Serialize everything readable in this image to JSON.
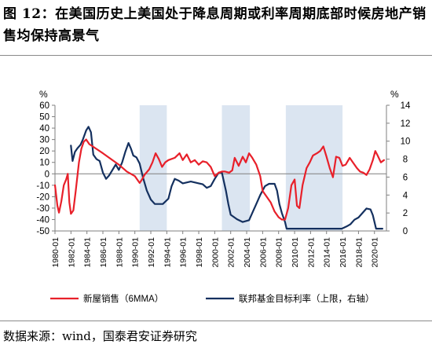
{
  "header": {
    "title": "图 12：在美国历史上美国处于降息周期或利率周期底部时候房地产销售均保持高景气"
  },
  "footer": {
    "source": "数据来源：wind，国泰君安证券研究"
  },
  "colors": {
    "sales": "#e8202a",
    "rate": "#14305f",
    "shade": "#dbe5f1",
    "axis": "#7f7f7f"
  },
  "chart_data": {
    "type": "line",
    "left_axis": {
      "unit": "%",
      "ylim": [
        -50,
        60
      ],
      "ticks": [
        60,
        50,
        40,
        30,
        20,
        10,
        0,
        -10,
        -20,
        -30,
        -40,
        -50
      ]
    },
    "right_axis": {
      "unit": "%",
      "ylim": [
        0,
        14
      ],
      "ticks": [
        14,
        12,
        10,
        8,
        6,
        4,
        2,
        0
      ]
    },
    "x_range": [
      1980.0,
      2021.5
    ],
    "x_tick_labels": [
      "1980-01",
      "1982-01",
      "1984-01",
      "1986-01",
      "1988-01",
      "1990-01",
      "1992-01",
      "1994-01",
      "1996-01",
      "1998-01",
      "2000-01",
      "2002-01",
      "2004-01",
      "2006-01",
      "2008-01",
      "2010-01",
      "2012-01",
      "2014-01",
      "2016-01",
      "2018-01",
      "2020-01"
    ],
    "shaded_periods": [
      [
        1990.6,
        1994.0
      ],
      [
        2000.9,
        2004.4
      ],
      [
        2008.9,
        2016.0
      ]
    ],
    "series": [
      {
        "name": "新屋销售（6MMA）",
        "axis": "left",
        "points": [
          [
            1980.0,
            -10
          ],
          [
            1980.3,
            -28
          ],
          [
            1980.5,
            -34
          ],
          [
            1980.8,
            -24
          ],
          [
            1981.1,
            -10
          ],
          [
            1981.4,
            -5
          ],
          [
            1981.6,
            0
          ],
          [
            1981.8,
            -25
          ],
          [
            1982.0,
            -35
          ],
          [
            1982.3,
            -32
          ],
          [
            1982.6,
            -15
          ],
          [
            1983.0,
            10
          ],
          [
            1983.3,
            22
          ],
          [
            1983.6,
            28
          ],
          [
            1983.9,
            30
          ],
          [
            1984.3,
            26
          ],
          [
            1986.0,
            18
          ],
          [
            1988.0,
            8
          ],
          [
            1989.0,
            2
          ],
          [
            1990.0,
            -2
          ],
          [
            1990.6,
            -8
          ],
          [
            1990.9,
            -5
          ],
          [
            1991.2,
            -1
          ],
          [
            1991.8,
            4
          ],
          [
            1992.2,
            10
          ],
          [
            1992.6,
            18
          ],
          [
            1993.0,
            13
          ],
          [
            1993.4,
            6
          ],
          [
            1993.8,
            10
          ],
          [
            1994.2,
            12
          ],
          [
            1995.0,
            14
          ],
          [
            1995.6,
            18
          ],
          [
            1996.0,
            12
          ],
          [
            1996.5,
            17
          ],
          [
            1997.0,
            10
          ],
          [
            1997.5,
            12
          ],
          [
            1998.0,
            8
          ],
          [
            1998.5,
            11
          ],
          [
            1999.0,
            10
          ],
          [
            1999.5,
            6
          ],
          [
            2000.0,
            -2
          ],
          [
            2000.5,
            1
          ],
          [
            2000.9,
            2
          ],
          [
            2001.3,
            2
          ],
          [
            2001.8,
            1
          ],
          [
            2002.2,
            3
          ],
          [
            2002.5,
            14
          ],
          [
            2003.0,
            7
          ],
          [
            2003.5,
            15
          ],
          [
            2003.9,
            10
          ],
          [
            2004.3,
            18
          ],
          [
            2004.7,
            14
          ],
          [
            2005.2,
            8
          ],
          [
            2005.7,
            -2
          ],
          [
            2006.0,
            -15
          ],
          [
            2006.5,
            -20
          ],
          [
            2007.0,
            -25
          ],
          [
            2007.5,
            -33
          ],
          [
            2008.0,
            -38
          ],
          [
            2008.4,
            -40
          ],
          [
            2008.8,
            -40
          ],
          [
            2009.2,
            -30
          ],
          [
            2009.6,
            -10
          ],
          [
            2010.0,
            -5
          ],
          [
            2010.3,
            -28
          ],
          [
            2010.6,
            -30
          ],
          [
            2011.0,
            -10
          ],
          [
            2011.5,
            5
          ],
          [
            2011.9,
            10
          ],
          [
            2012.3,
            16
          ],
          [
            2012.8,
            18
          ],
          [
            2013.2,
            20
          ],
          [
            2013.6,
            24
          ],
          [
            2014.0,
            15
          ],
          [
            2014.4,
            5
          ],
          [
            2014.8,
            -3
          ],
          [
            2015.2,
            15
          ],
          [
            2015.6,
            14
          ],
          [
            2016.0,
            7
          ],
          [
            2016.4,
            8
          ],
          [
            2016.9,
            14
          ],
          [
            2017.3,
            10
          ],
          [
            2017.8,
            5
          ],
          [
            2018.2,
            2
          ],
          [
            2018.6,
            1
          ],
          [
            2019.0,
            -1
          ],
          [
            2019.4,
            4
          ],
          [
            2019.8,
            12
          ],
          [
            2020.1,
            20
          ],
          [
            2020.4,
            16
          ],
          [
            2020.8,
            10
          ],
          [
            2021.2,
            12
          ]
        ]
      },
      {
        "name": "联邦基金目标利率（上限，右轴）",
        "axis": "right",
        "points": [
          [
            1982.0,
            9.5
          ],
          [
            1982.2,
            7.8
          ],
          [
            1982.5,
            8.8
          ],
          [
            1982.8,
            9.2
          ],
          [
            1983.2,
            9.6
          ],
          [
            1983.5,
            10.2
          ],
          [
            1983.9,
            11.2
          ],
          [
            1984.2,
            11.6
          ],
          [
            1984.5,
            11.0
          ],
          [
            1984.8,
            8.5
          ],
          [
            1985.2,
            8.0
          ],
          [
            1985.6,
            7.8
          ],
          [
            1986.0,
            6.5
          ],
          [
            1986.4,
            5.8
          ],
          [
            1986.8,
            6.2
          ],
          [
            1987.2,
            6.8
          ],
          [
            1987.6,
            7.4
          ],
          [
            1988.0,
            6.8
          ],
          [
            1988.4,
            7.6
          ],
          [
            1988.8,
            8.8
          ],
          [
            1989.2,
            9.8
          ],
          [
            1989.5,
            9.2
          ],
          [
            1989.8,
            8.4
          ],
          [
            1990.2,
            8.2
          ],
          [
            1990.6,
            7.5
          ],
          [
            1991.0,
            6.0
          ],
          [
            1991.5,
            4.5
          ],
          [
            1992.0,
            3.5
          ],
          [
            1992.5,
            3.0
          ],
          [
            1993.5,
            3.0
          ],
          [
            1994.2,
            3.6
          ],
          [
            1994.6,
            5.0
          ],
          [
            1995.0,
            5.8
          ],
          [
            1995.5,
            5.6
          ],
          [
            1996.0,
            5.3
          ],
          [
            1997.0,
            5.5
          ],
          [
            1998.5,
            5.2
          ],
          [
            1999.0,
            4.8
          ],
          [
            1999.5,
            5.0
          ],
          [
            2000.0,
            5.8
          ],
          [
            2000.5,
            6.5
          ],
          [
            2000.9,
            6.5
          ],
          [
            2001.4,
            4.5
          ],
          [
            2001.7,
            3.0
          ],
          [
            2002.0,
            1.8
          ],
          [
            2002.8,
            1.3
          ],
          [
            2003.5,
            1.0
          ],
          [
            2004.3,
            1.2
          ],
          [
            2004.7,
            2.0
          ],
          [
            2005.2,
            3.0
          ],
          [
            2005.7,
            4.0
          ],
          [
            2006.3,
            5.0
          ],
          [
            2006.8,
            5.25
          ],
          [
            2007.5,
            5.25
          ],
          [
            2007.8,
            4.5
          ],
          [
            2008.1,
            3.0
          ],
          [
            2008.4,
            2.0
          ],
          [
            2008.8,
            1.0
          ],
          [
            2009.0,
            0.25
          ],
          [
            2015.9,
            0.25
          ],
          [
            2016.5,
            0.5
          ],
          [
            2017.0,
            0.75
          ],
          [
            2017.5,
            1.25
          ],
          [
            2018.0,
            1.5
          ],
          [
            2018.5,
            2.0
          ],
          [
            2019.0,
            2.5
          ],
          [
            2019.5,
            2.4
          ],
          [
            2019.8,
            1.75
          ],
          [
            2020.2,
            0.25
          ],
          [
            2021.0,
            0.25
          ]
        ]
      }
    ]
  }
}
